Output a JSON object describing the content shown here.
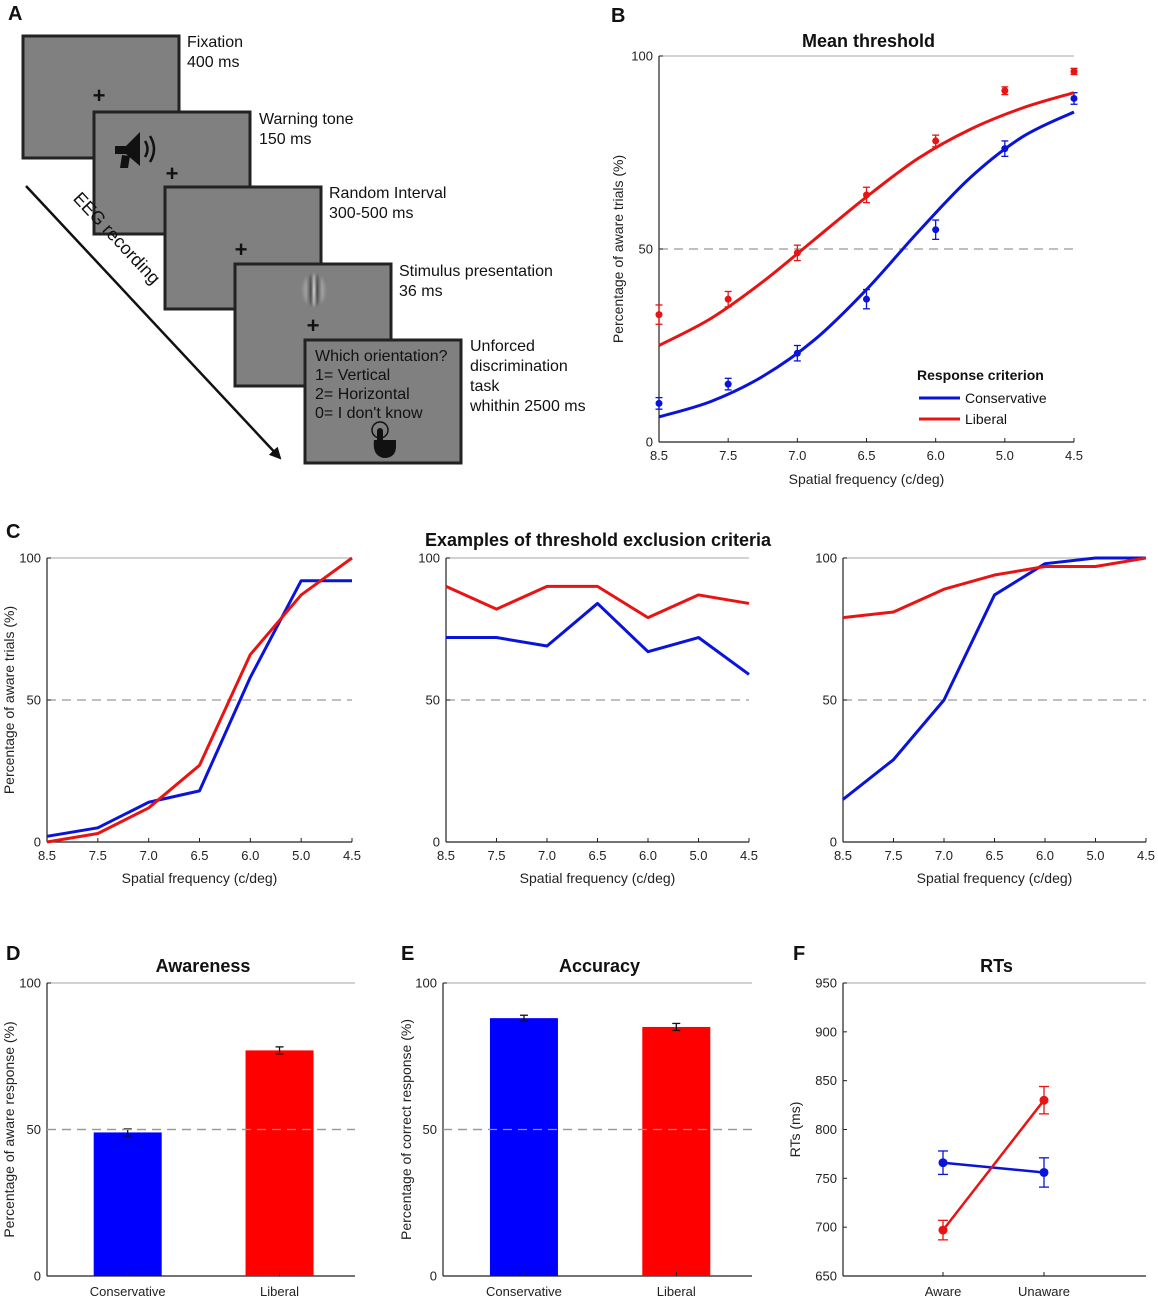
{
  "panel_a": {
    "letter": "A",
    "screens": [
      {
        "label": "Fixation",
        "duration": "400 ms"
      },
      {
        "label": "Warning tone",
        "duration": "150 ms"
      },
      {
        "label": "Random Interval",
        "duration": "300-500 ms"
      },
      {
        "label": "Stimulus presentation",
        "duration": "36 ms"
      }
    ],
    "final_screen": {
      "question": "Which orientation?",
      "options": [
        "1= Vertical",
        "2= Horizontal",
        "0= I don't know"
      ],
      "label_lines": [
        "Unforced",
        "discrimination",
        "task",
        "whithin 2500 ms"
      ]
    },
    "arrow_label": "EEG recording",
    "colors": {
      "screen": "#808080",
      "border": "#222222"
    }
  },
  "chart_data": [
    {
      "id": "B",
      "letter": "B",
      "type": "line",
      "title": "Mean threshold",
      "xlabel": "Spatial frequency (c/deg)",
      "ylabel": "Percentage of aware trials (%)",
      "categories": [
        "8.5",
        "7.5",
        "7.0",
        "6.5",
        "6.0",
        "5.0",
        "4.5"
      ],
      "ylim": [
        0,
        100
      ],
      "yticks": [
        "0",
        "50",
        "100"
      ],
      "reference_line": 50,
      "legend_title": "Response criterion",
      "series": [
        {
          "name": "Conservative",
          "color": "#0a14d9",
          "points": [
            10,
            15,
            23,
            37,
            55,
            76,
            89
          ],
          "errors": [
            1.5,
            1.5,
            2,
            2.5,
            2.5,
            2,
            1.5
          ],
          "fit": [
            6.5,
            10.5,
            17,
            26.5,
            39.5,
            54.5,
            68.5,
            79,
            85.5
          ]
        },
        {
          "name": "Liberal",
          "color": "#e81414",
          "points": [
            33,
            37,
            49,
            64,
            78,
            91,
            96
          ],
          "errors": [
            2.5,
            2,
            2,
            2,
            1.5,
            1,
            0.8
          ],
          "fit": [
            25,
            32,
            41.5,
            52.5,
            63.5,
            73.5,
            81,
            86.5,
            90.5
          ]
        }
      ]
    },
    {
      "id": "C1",
      "letter": "C",
      "type": "line",
      "title": "Examples of threshold exclusion criteria",
      "xlabel": "Spatial frequency (c/deg)",
      "ylabel": "Percentage of aware trials (%)",
      "categories": [
        "8.5",
        "7.5",
        "7.0",
        "6.5",
        "6.0",
        "5.0",
        "4.5"
      ],
      "ylim": [
        0,
        100
      ],
      "yticks": [
        "0",
        "50",
        "100"
      ],
      "reference_line": 50,
      "series": [
        {
          "name": "Conservative",
          "color": "#0a14d9",
          "values": [
            2,
            5,
            14,
            18,
            58,
            92,
            92
          ]
        },
        {
          "name": "Liberal",
          "color": "#e81414",
          "values": [
            0,
            3,
            12,
            27,
            66,
            87,
            100
          ]
        }
      ]
    },
    {
      "id": "C2",
      "type": "line",
      "xlabel": "Spatial frequency (c/deg)",
      "categories": [
        "8.5",
        "7.5",
        "7.0",
        "6.5",
        "6.0",
        "5.0",
        "4.5"
      ],
      "ylim": [
        0,
        100
      ],
      "yticks": [
        "0",
        "50",
        "100"
      ],
      "reference_line": 50,
      "series": [
        {
          "name": "Conservative",
          "color": "#0a14d9",
          "values": [
            72,
            72,
            69,
            84,
            67,
            72,
            59
          ]
        },
        {
          "name": "Liberal",
          "color": "#e81414",
          "values": [
            90,
            82,
            90,
            90,
            79,
            87,
            84
          ]
        }
      ]
    },
    {
      "id": "C3",
      "type": "line",
      "xlabel": "Spatial frequency (c/deg)",
      "categories": [
        "8.5",
        "7.5",
        "7.0",
        "6.5",
        "6.0",
        "5.0",
        "4.5"
      ],
      "ylim": [
        0,
        100
      ],
      "yticks": [
        "0",
        "50",
        "100"
      ],
      "reference_line": 50,
      "series": [
        {
          "name": "Conservative",
          "color": "#0a14d9",
          "values": [
            15,
            29,
            50,
            87,
            98,
            100,
            100
          ]
        },
        {
          "name": "Liberal",
          "color": "#e81414",
          "values": [
            79,
            81,
            89,
            94,
            97,
            97,
            100
          ]
        }
      ]
    },
    {
      "id": "D",
      "letter": "D",
      "type": "bar",
      "title": "Awareness",
      "ylabel": "Percentage of aware response (%)",
      "categories": [
        "Conservative",
        "Liberal"
      ],
      "values": [
        49,
        77
      ],
      "errors": [
        1.2,
        1.2
      ],
      "colors": [
        "#0000ff",
        "#ff0000"
      ],
      "ylim": [
        0,
        100
      ],
      "yticks": [
        "0",
        "50",
        "100"
      ],
      "reference_line": 50
    },
    {
      "id": "E",
      "letter": "E",
      "type": "bar",
      "title": "Accuracy",
      "ylabel": "Percentage of correct response (%)",
      "categories": [
        "Conservative",
        "Liberal"
      ],
      "values": [
        88,
        85
      ],
      "errors": [
        1,
        1.2
      ],
      "colors": [
        "#0000ff",
        "#ff0000"
      ],
      "ylim": [
        0,
        100
      ],
      "yticks": [
        "0",
        "50",
        "100"
      ],
      "reference_line": 50
    },
    {
      "id": "F",
      "letter": "F",
      "type": "line",
      "title": "RTs",
      "ylabel": "RTs (ms)",
      "categories": [
        "Aware",
        "Unaware"
      ],
      "ylim": [
        650,
        950
      ],
      "yticks": [
        "650",
        "700",
        "750",
        "800",
        "850",
        "900",
        "950"
      ],
      "series": [
        {
          "name": "Conservative",
          "color": "#0a14d9",
          "values": [
            766,
            756
          ],
          "errors": [
            12,
            15
          ]
        },
        {
          "name": "Liberal",
          "color": "#e81414",
          "values": [
            697,
            830
          ],
          "errors": [
            10,
            14
          ]
        }
      ]
    }
  ]
}
